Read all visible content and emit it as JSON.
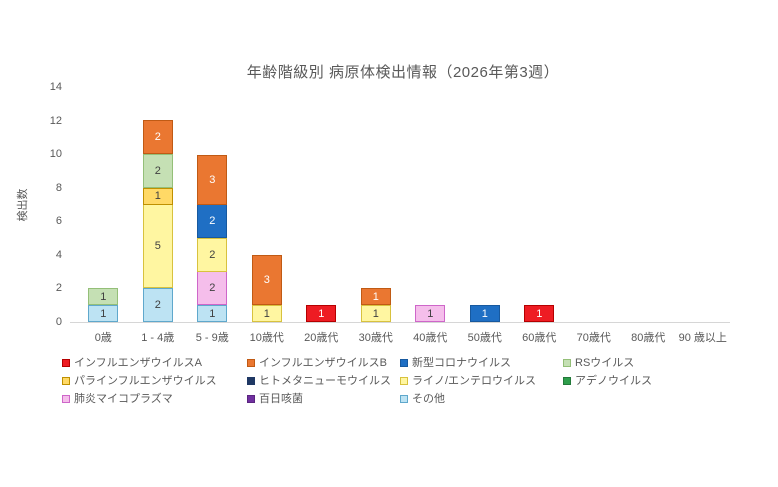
{
  "chart_data": {
    "type": "bar",
    "stacked": true,
    "title": "年齢階級別 病原体検出情報（2026年第3週）",
    "ylabel": "検出数",
    "xlabel": "",
    "ylim": [
      0,
      14
    ],
    "yticks": [
      0,
      2,
      4,
      6,
      8,
      10,
      12,
      14
    ],
    "grid": false,
    "legend_position": "bottom",
    "axis_color": "#d6d6d6",
    "text_color": "#595959",
    "categories": [
      "0歳",
      "1 - 4歳",
      "5 - 9歳",
      "10歳代",
      "20歳代",
      "30歳代",
      "40歳代",
      "50歳代",
      "60歳代",
      "70歳代",
      "80歳代",
      "90 歳以上"
    ],
    "series": [
      {
        "name": "インフルエンザウイルスA",
        "fill": "#ee1c23",
        "border": "#b50000",
        "label_color": "#ffffff",
        "values": [
          0,
          0,
          0,
          0,
          1,
          0,
          0,
          0,
          1,
          0,
          0,
          0
        ]
      },
      {
        "name": "インフルエンザウイルスB",
        "fill": "#ea7731",
        "border": "#c05a14",
        "label_color": "#ffffff",
        "values": [
          0,
          2,
          3,
          3,
          0,
          1,
          0,
          0,
          0,
          0,
          0,
          0
        ]
      },
      {
        "name": "新型コロナウイルス",
        "fill": "#1f6fc4",
        "border": "#17599f",
        "label_color": "#ffffff",
        "values": [
          0,
          0,
          2,
          0,
          0,
          0,
          0,
          1,
          0,
          0,
          0,
          0
        ]
      },
      {
        "name": "RSウイルス",
        "fill": "#c5e0b4",
        "border": "#94bf78",
        "label_color": "#404040",
        "values": [
          1,
          2,
          0,
          0,
          0,
          0,
          0,
          0,
          0,
          0,
          0,
          0
        ]
      },
      {
        "name": "パラインフルエンザウイルス",
        "fill": "#ffd966",
        "border": "#bf9000",
        "label_color": "#404040",
        "values": [
          0,
          1,
          0,
          0,
          0,
          0,
          0,
          0,
          0,
          0,
          0,
          0
        ]
      },
      {
        "name": "ヒトメタニューモウイルス",
        "fill": "#1f3864",
        "border": "#1f3864",
        "label_color": "#ffffff",
        "values": [
          0,
          0,
          0,
          0,
          0,
          0,
          0,
          0,
          0,
          0,
          0,
          0
        ]
      },
      {
        "name": "ライノ/エンテロウイルス",
        "fill": "#fff6a1",
        "border": "#d8c23e",
        "label_color": "#404040",
        "values": [
          0,
          5,
          2,
          1,
          0,
          1,
          0,
          0,
          0,
          0,
          0,
          0
        ]
      },
      {
        "name": "アデノウイルス",
        "fill": "#2e9e4b",
        "border": "#23793a",
        "label_color": "#ffffff",
        "values": [
          0,
          0,
          0,
          0,
          0,
          0,
          0,
          0,
          0,
          0,
          0,
          0
        ]
      },
      {
        "name": "肺炎マイコプラズマ",
        "fill": "#f5beeb",
        "border": "#ce66c9",
        "label_color": "#404040",
        "values": [
          0,
          0,
          2,
          0,
          0,
          0,
          1,
          0,
          0,
          0,
          0,
          0
        ]
      },
      {
        "name": "百日咳菌",
        "fill": "#7030a0",
        "border": "#5b2480",
        "label_color": "#ffffff",
        "values": [
          0,
          0,
          0,
          0,
          0,
          0,
          0,
          0,
          0,
          0,
          0,
          0
        ]
      },
      {
        "name": "その他",
        "fill": "#bde3f3",
        "border": "#5fa8cc",
        "label_color": "#404040",
        "values": [
          1,
          2,
          1,
          0,
          0,
          0,
          0,
          0,
          0,
          0,
          0,
          0
        ]
      }
    ]
  }
}
